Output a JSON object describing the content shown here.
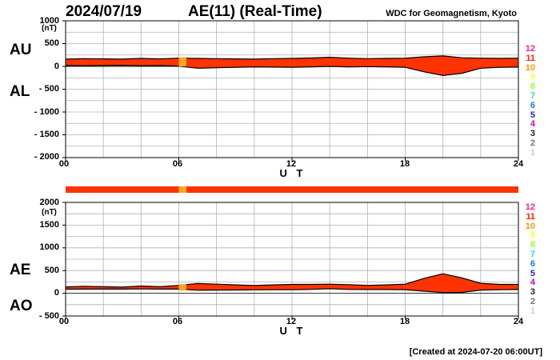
{
  "header": {
    "date": "2024/07/19",
    "title": "AE(11) (Real-Time)",
    "source": "WDC for Geomagnetism, Kyoto",
    "created": "[Created at 2024-07-20 06:00UT]"
  },
  "colors": {
    "band": "#ff3300",
    "band_edge": "#000000",
    "flag_bar": "#ff3300",
    "flag_marker": "#f5a623",
    "grid": "#b0b0b0"
  },
  "legend": {
    "values": [
      {
        "label": "12",
        "color": "#ff1e8c"
      },
      {
        "label": "11",
        "color": "#ff2200"
      },
      {
        "label": "10",
        "color": "#ff9900"
      },
      {
        "label": "9",
        "color": "#ffff33"
      },
      {
        "label": "8",
        "color": "#99ff33"
      },
      {
        "label": "7",
        "color": "#22dddd"
      },
      {
        "label": "6",
        "color": "#1177ff"
      },
      {
        "label": "5",
        "color": "#2222cc"
      },
      {
        "label": "4",
        "color": "#cc00cc"
      },
      {
        "label": "3",
        "color": "#222222"
      },
      {
        "label": "2",
        "color": "#777777"
      },
      {
        "label": "1",
        "color": "#cccccc"
      }
    ]
  },
  "chart_data": [
    {
      "type": "area",
      "id": "au-al",
      "series": [
        {
          "name": "AU",
          "x": [
            0,
            1,
            2,
            3,
            4,
            5,
            6,
            7,
            8,
            9,
            10,
            11,
            12,
            13,
            14,
            15,
            16,
            17,
            18,
            19,
            20,
            21,
            22,
            23,
            24
          ],
          "values": [
            160,
            170,
            165,
            160,
            175,
            165,
            180,
            175,
            170,
            165,
            160,
            170,
            175,
            185,
            200,
            180,
            170,
            175,
            180,
            210,
            230,
            190,
            180,
            175,
            180
          ]
        },
        {
          "name": "AL",
          "x": [
            0,
            1,
            2,
            3,
            4,
            5,
            6,
            7,
            8,
            9,
            10,
            11,
            12,
            13,
            14,
            15,
            16,
            17,
            18,
            19,
            20,
            21,
            22,
            23,
            24
          ],
          "values": [
            20,
            15,
            20,
            25,
            15,
            20,
            5,
            -40,
            -30,
            -20,
            -10,
            -15,
            -20,
            -10,
            0,
            -10,
            -5,
            -10,
            -20,
            -120,
            -200,
            -150,
            -40,
            -20,
            -15
          ]
        }
      ],
      "x_ticks": [
        "00",
        "06",
        "12",
        "18",
        "24"
      ],
      "xlabel": "U T",
      "ylabel": "(nT)",
      "xlim": [
        0,
        24
      ],
      "ylim": [
        -2000,
        1000
      ],
      "y_ticks": [
        "1000",
        "500",
        "0",
        "- 500",
        "- 1000",
        "- 1500",
        "- 2000"
      ],
      "y_tick_values": [
        1000,
        500,
        0,
        -500,
        -1000,
        -1500,
        -2000
      ],
      "left_labels": [
        "AU",
        "AL"
      ],
      "flag": {
        "x0": 6.0,
        "x1": 6.4,
        "y0": 0,
        "y1": 200
      },
      "grid": true
    },
    {
      "type": "area",
      "id": "ae-ao",
      "series": [
        {
          "name": "AE",
          "x": [
            0,
            1,
            2,
            3,
            4,
            5,
            6,
            7,
            8,
            9,
            10,
            11,
            12,
            13,
            14,
            15,
            16,
            17,
            18,
            19,
            20,
            21,
            22,
            23,
            24
          ],
          "values": [
            140,
            155,
            145,
            135,
            160,
            145,
            175,
            215,
            200,
            185,
            170,
            185,
            195,
            195,
            200,
            190,
            175,
            185,
            200,
            330,
            430,
            340,
            220,
            195,
            195
          ]
        },
        {
          "name": "AO",
          "x": [
            0,
            1,
            2,
            3,
            4,
            5,
            6,
            7,
            8,
            9,
            10,
            11,
            12,
            13,
            14,
            15,
            16,
            17,
            18,
            19,
            20,
            21,
            22,
            23,
            24
          ],
          "values": [
            90,
            92,
            92,
            92,
            95,
            92,
            92,
            67,
            70,
            72,
            75,
            77,
            77,
            87,
            100,
            85,
            82,
            82,
            80,
            45,
            15,
            20,
            70,
            77,
            82
          ]
        }
      ],
      "x_ticks": [
        "00",
        "06",
        "12",
        "18",
        "24"
      ],
      "xlabel": "U T",
      "ylabel": "(nT)",
      "xlim": [
        0,
        24
      ],
      "ylim": [
        -500,
        2000
      ],
      "y_ticks": [
        "2000",
        "1500",
        "1000",
        "500",
        "0",
        "- 500"
      ],
      "y_tick_values": [
        2000,
        1500,
        1000,
        500,
        0,
        -500
      ],
      "left_labels": [
        "AE",
        "AO"
      ],
      "flag": {
        "x0": 6.0,
        "x1": 6.4,
        "y0": 60,
        "y1": 200
      },
      "grid": true
    }
  ]
}
